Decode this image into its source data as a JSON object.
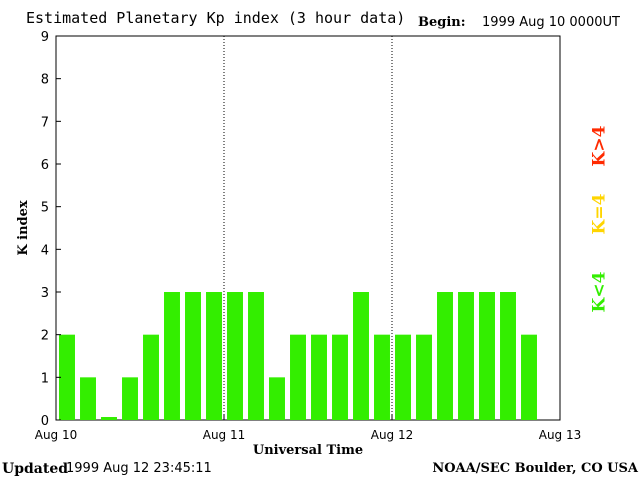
{
  "header": {
    "title": "Estimated Planetary Kp index (3 hour data)",
    "begin_label": "Begin:",
    "begin_value": "1999 Aug 10 0000UT"
  },
  "footer": {
    "updated_label": "Updated",
    "updated_value": "1999 Aug 12 23:45:11",
    "credit": "NOAA/SEC Boulder, CO USA"
  },
  "legend": {
    "items": [
      {
        "label": "K>4",
        "color": "#ff2a00"
      },
      {
        "label": "K=4",
        "color": "#ffd500"
      },
      {
        "label": "K<4",
        "color": "#33ee00"
      }
    ]
  },
  "chart_data": {
    "type": "bar",
    "xlabel": "Universal Time",
    "ylabel": "K index",
    "ylim": [
      0,
      9
    ],
    "yticks": [
      0,
      1,
      2,
      3,
      4,
      5,
      6,
      7,
      8,
      9
    ],
    "xtick_labels": [
      "Aug 10",
      "Aug 11",
      "Aug 12",
      "Aug 13"
    ],
    "bars_per_day": 8,
    "values": [
      2,
      1,
      0.07,
      1,
      2,
      3,
      3,
      3,
      3,
      3,
      1,
      2,
      2,
      2,
      3,
      2,
      2,
      2,
      3,
      3,
      3,
      3,
      2
    ],
    "bar_color": "#33ee00",
    "day_separators": "dotted"
  }
}
